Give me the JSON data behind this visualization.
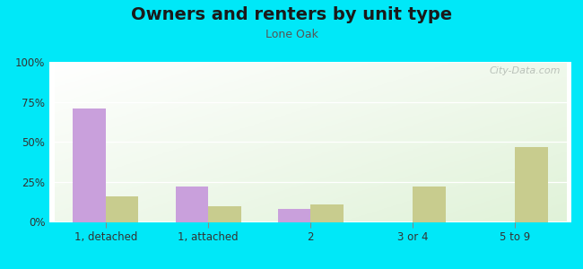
{
  "title": "Owners and renters by unit type",
  "subtitle": "Lone Oak",
  "categories": [
    "1, detached",
    "1, attached",
    "2",
    "3 or 4",
    "5 to 9"
  ],
  "owner_values": [
    71,
    22,
    8,
    0,
    0
  ],
  "renter_values": [
    16,
    10,
    11,
    22,
    47
  ],
  "owner_color": "#c9a0dc",
  "renter_color": "#c8cc8e",
  "background_outer": "#00e8f8",
  "yticks": [
    0,
    25,
    50,
    75,
    100
  ],
  "ytick_labels": [
    "0%",
    "25%",
    "50%",
    "75%",
    "100%"
  ],
  "ylim": [
    0,
    100
  ],
  "bar_width": 0.32,
  "title_fontsize": 14,
  "subtitle_fontsize": 9,
  "axis_fontsize": 8.5,
  "legend_fontsize": 9,
  "watermark": "City-Data.com"
}
